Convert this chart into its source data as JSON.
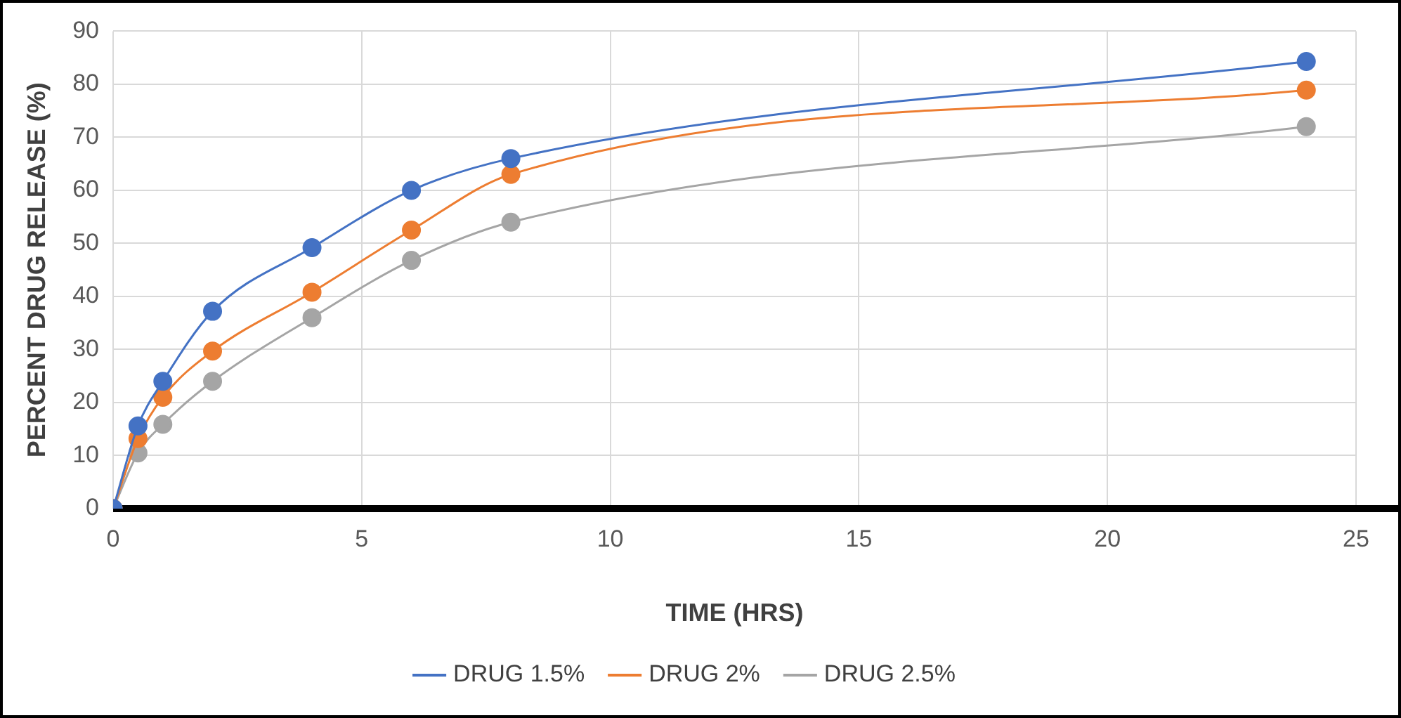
{
  "chart_data": {
    "type": "line",
    "xlabel": "TIME (HRS)",
    "ylabel": "PERCENT DRUG RELEASE (%)",
    "x": [
      0,
      0.5,
      1,
      2,
      4,
      6,
      8,
      24
    ],
    "series": [
      {
        "name": "DRUG 1.5%",
        "color": "#4472c4",
        "values": [
          0,
          15.6,
          24,
          37.2,
          49.2,
          60,
          66,
          84.3
        ]
      },
      {
        "name": "DRUG 2%",
        "color": "#ed7d31",
        "values": [
          0,
          13.2,
          21,
          29.7,
          40.8,
          52.5,
          63,
          78.9
        ]
      },
      {
        "name": "DRUG 2.5%",
        "color": "#a5a5a5",
        "values": [
          0,
          10.5,
          15.9,
          24,
          36,
          46.8,
          54,
          72
        ]
      }
    ],
    "xlim": [
      0,
      25
    ],
    "xticks": [
      0,
      5,
      10,
      15,
      20,
      25
    ],
    "ylim": [
      0,
      90
    ],
    "yticks": [
      0,
      10,
      20,
      30,
      40,
      50,
      60,
      70,
      80,
      90
    ],
    "grid": true,
    "legend": "bottom",
    "marker": "circle",
    "line_style": "solid"
  }
}
